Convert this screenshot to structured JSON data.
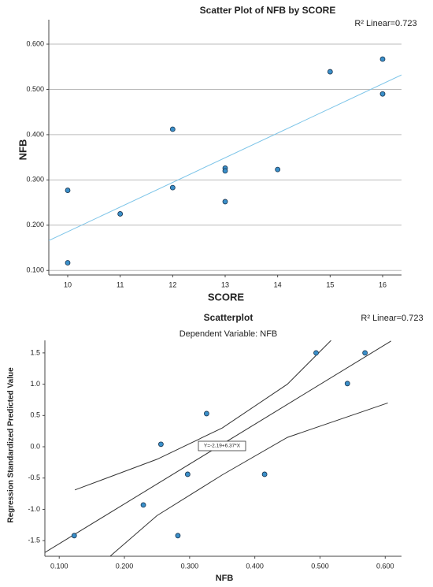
{
  "chart_data": [
    {
      "type": "scatter",
      "title": "Scatter Plot of NFB   by SCORE",
      "annotation": "R² Linear=0.723",
      "x_label": "SCORE",
      "y_label": "NFB",
      "x": [
        10,
        10,
        11,
        12,
        12,
        13,
        13,
        13,
        14,
        15,
        16,
        16
      ],
      "values": [
        0.277,
        0.117,
        0.225,
        0.412,
        0.283,
        0.326,
        0.32,
        0.252,
        0.323,
        0.539,
        0.567,
        0.49
      ],
      "color": "#3a8fc9",
      "fit_line": {
        "x": [
          9.64,
          16.36
        ],
        "y": [
          0.166,
          0.532
        ],
        "color": "#7cc4e8"
      },
      "xlim": [
        9.64,
        16.36
      ],
      "ylim": [
        0.09,
        0.654
      ],
      "xticks": [
        10,
        11,
        12,
        13,
        14,
        15,
        16
      ],
      "yticks": [
        {
          "value": 0.1,
          "label": "0.100"
        },
        {
          "value": 0.2,
          "label": "0.200"
        },
        {
          "value": 0.3,
          "label": "0.300"
        },
        {
          "value": 0.4,
          "label": "0.400"
        },
        {
          "value": 0.5,
          "label": "0.500"
        },
        {
          "value": 0.6,
          "label": "0.600"
        }
      ],
      "grid": true
    },
    {
      "type": "scatter",
      "title": "Scatterplot",
      "subtitle": "Dependent Variable: NFB",
      "annotation": "R² Linear=0.723",
      "x_label": "NFB",
      "y_label": "Regression Standardized Predicted Value",
      "equation": "Y=-2.19+6.37*X",
      "x": [
        0.123,
        0.282,
        0.229,
        0.297,
        0.415,
        0.256,
        0.326,
        0.494,
        0.569,
        0.542
      ],
      "values": [
        -1.42,
        -1.42,
        -0.93,
        -0.44,
        -0.44,
        0.04,
        0.53,
        1.5,
        1.5,
        1.01
      ],
      "color": "#3a8fc9",
      "fit_line": {
        "x": [
          0.078,
          0.609
        ],
        "y": [
          -1.69,
          1.69
        ],
        "color": "#333333"
      },
      "ci_upper": {
        "x": [
          0.124,
          0.25,
          0.35,
          0.45,
          0.517
        ],
        "y": [
          -0.69,
          -0.2,
          0.3,
          1.0,
          1.7
        ],
        "color": "#333333"
      },
      "ci_lower": {
        "x": [
          0.178,
          0.25,
          0.35,
          0.45,
          0.604
        ],
        "y": [
          -1.75,
          -1.1,
          -0.45,
          0.15,
          0.7
        ],
        "color": "#333333"
      },
      "xlim": [
        0.078,
        0.625
      ],
      "ylim": [
        -1.75,
        1.7
      ],
      "xticks": [
        {
          "value": 0.1,
          "label": "0.100"
        },
        {
          "value": 0.2,
          "label": "0.200"
        },
        {
          "value": 0.3,
          "label": "0.300"
        },
        {
          "value": 0.4,
          "label": "0.400"
        },
        {
          "value": 0.5,
          "label": "0.500"
        },
        {
          "value": 0.6,
          "label": "0.600"
        }
      ],
      "yticks": [
        1.5,
        {
          "value": 1.0,
          "label": "1.0"
        },
        0.5,
        {
          "value": 0.0,
          "label": "0.0"
        },
        -0.5,
        {
          "value": -1.0,
          "label": "-1.0"
        },
        -1.5
      ],
      "grid": false
    }
  ]
}
